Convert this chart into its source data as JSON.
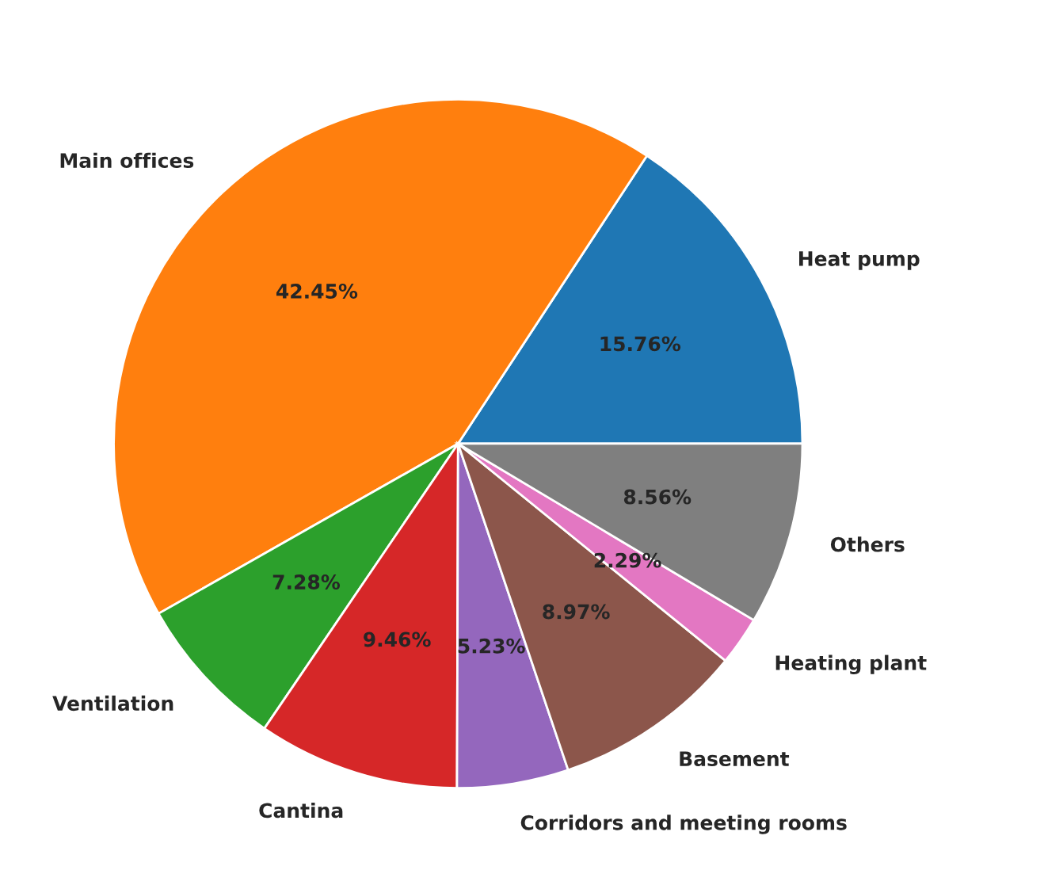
{
  "chart_data": {
    "type": "pie",
    "categories": [
      "Heat pump",
      "Main offices",
      "Ventilation",
      "Cantina",
      "Corridors and meeting rooms",
      "Basement",
      "Heating plant",
      "Others"
    ],
    "values": [
      15.76,
      42.45,
      7.28,
      9.46,
      5.23,
      8.97,
      2.29,
      8.56
    ],
    "value_labels": [
      "15.76%",
      "42.45%",
      "7.28%",
      "9.46%",
      "5.23%",
      "8.97%",
      "2.29%",
      "8.56%"
    ],
    "colors": [
      "#1f77b4",
      "#ff7f0e",
      "#2ca02c",
      "#d62728",
      "#9467bd",
      "#8c564b",
      "#e377c2",
      "#7f7f7f"
    ],
    "legend": false
  }
}
